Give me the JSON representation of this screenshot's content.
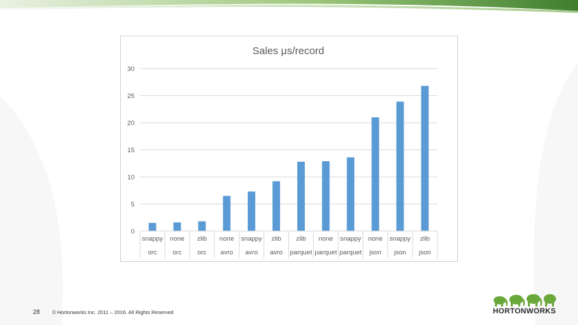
{
  "slide": {
    "page_number": "28",
    "copyright": "© Hortonworks Inc. 2011 – 2016. All Rights Reserved",
    "logo_text": "HORTONWORKS",
    "accent_color": "#6aa83c",
    "band_color_dark": "#3f7f2f"
  },
  "chart_data": {
    "type": "bar",
    "title": "Sales μs/record",
    "xlabel": "",
    "ylabel": "",
    "ylim": [
      0,
      30
    ],
    "yticks": [
      0,
      5,
      10,
      15,
      20,
      25,
      30
    ],
    "grid": true,
    "bar_color": "#5b9bd5",
    "categories": [
      {
        "compression": "snappy",
        "format": "orc"
      },
      {
        "compression": "none",
        "format": "orc"
      },
      {
        "compression": "zlib",
        "format": "orc"
      },
      {
        "compression": "none",
        "format": "avro"
      },
      {
        "compression": "snappy",
        "format": "avro"
      },
      {
        "compression": "zlib",
        "format": "avro"
      },
      {
        "compression": "zlib",
        "format": "parquet"
      },
      {
        "compression": "none",
        "format": "parquet"
      },
      {
        "compression": "snappy",
        "format": "parquet"
      },
      {
        "compression": "none",
        "format": "json"
      },
      {
        "compression": "snappy",
        "format": "json"
      },
      {
        "compression": "zlib",
        "format": "json"
      }
    ],
    "values": [
      1.5,
      1.6,
      1.8,
      6.5,
      7.3,
      9.2,
      12.8,
      12.9,
      13.6,
      21.0,
      23.9,
      26.8
    ]
  }
}
